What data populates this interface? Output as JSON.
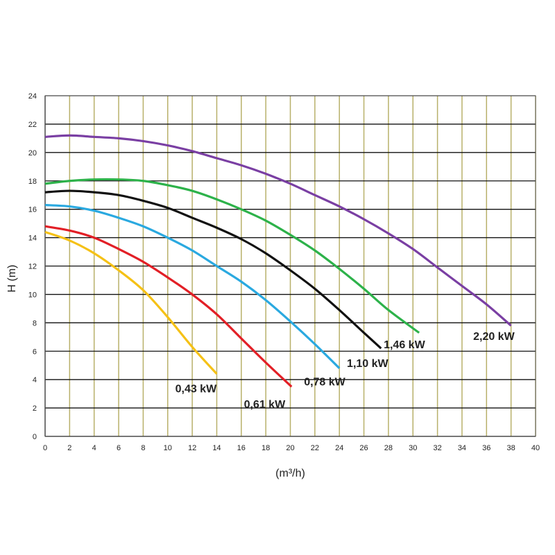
{
  "chart_data": {
    "type": "line",
    "xlabel": "(m³/h)",
    "ylabel": "H (m)",
    "xlim": [
      0,
      40
    ],
    "ylim": [
      0,
      24
    ],
    "x_ticks": [
      0,
      2,
      4,
      6,
      8,
      10,
      12,
      14,
      16,
      18,
      20,
      22,
      24,
      26,
      28,
      30,
      32,
      34,
      36,
      38,
      40
    ],
    "y_ticks": [
      0,
      2,
      4,
      6,
      8,
      10,
      12,
      14,
      16,
      18,
      20,
      22,
      24
    ],
    "grid": {
      "vertical": true,
      "horizontal": true
    },
    "colors": {
      "vertical_grid": "#b8b06a",
      "horizontal_grid": "#111111",
      "plot_border": "#555555"
    },
    "series": [
      {
        "name": "0,43 kW",
        "color": "#f5c116",
        "x": [
          0,
          2,
          4,
          6,
          8,
          10,
          12,
          14
        ],
        "y": [
          14.4,
          13.8,
          12.9,
          11.7,
          10.3,
          8.4,
          6.3,
          4.4
        ]
      },
      {
        "name": "0,61 kW",
        "color": "#e21f26",
        "x": [
          0,
          2,
          4,
          6,
          8,
          10,
          12,
          14,
          16,
          18,
          20.1
        ],
        "y": [
          14.8,
          14.5,
          14.0,
          13.2,
          12.3,
          11.2,
          10.0,
          8.6,
          6.9,
          5.2,
          3.5
        ]
      },
      {
        "name": "0,78 kW",
        "color": "#2aa9e0",
        "x": [
          0,
          2,
          4,
          6,
          8,
          10,
          12,
          14,
          16,
          18,
          20,
          22,
          24
        ],
        "y": [
          16.3,
          16.2,
          15.9,
          15.4,
          14.8,
          14.0,
          13.1,
          12.0,
          10.9,
          9.6,
          8.1,
          6.5,
          4.8
        ]
      },
      {
        "name": "1,10 kW",
        "color": "#111111",
        "x": [
          0,
          2,
          4,
          6,
          8,
          10,
          12,
          14,
          16,
          18,
          20,
          22,
          24,
          26,
          27.4
        ],
        "y": [
          17.2,
          17.3,
          17.2,
          17.0,
          16.6,
          16.1,
          15.4,
          14.7,
          13.9,
          12.9,
          11.7,
          10.4,
          8.9,
          7.3,
          6.2
        ]
      },
      {
        "name": "1,46 kW",
        "color": "#2db24a",
        "x": [
          0,
          2,
          4,
          6,
          8,
          10,
          12,
          14,
          16,
          18,
          20,
          22,
          24,
          26,
          28,
          30.5
        ],
        "y": [
          17.8,
          18.0,
          18.1,
          18.1,
          18.0,
          17.7,
          17.3,
          16.7,
          16.0,
          15.2,
          14.2,
          13.1,
          11.8,
          10.4,
          8.9,
          7.3
        ]
      },
      {
        "name": "2,20 kW",
        "color": "#7a3fa3",
        "x": [
          0,
          2,
          4,
          6,
          8,
          10,
          12,
          14,
          16,
          18,
          20,
          22,
          24,
          26,
          28,
          30,
          32,
          34,
          36,
          38
        ],
        "y": [
          21.1,
          21.2,
          21.1,
          21.0,
          20.8,
          20.5,
          20.1,
          19.6,
          19.1,
          18.5,
          17.8,
          17.0,
          16.2,
          15.3,
          14.3,
          13.2,
          11.9,
          10.6,
          9.3,
          7.8
        ]
      }
    ],
    "labels": [
      {
        "text": "0,43 kW",
        "x": 12.3,
        "y": 3.1
      },
      {
        "text": "0,61 kW",
        "x": 17.9,
        "y": 2.0
      },
      {
        "text": "0,78 kW",
        "x": 22.8,
        "y": 3.6
      },
      {
        "text": "1,10 kW",
        "x": 26.3,
        "y": 4.9
      },
      {
        "text": "1,46 kW",
        "x": 29.3,
        "y": 6.2
      },
      {
        "text": "2,20 kW",
        "x": 36.6,
        "y": 6.8
      }
    ]
  }
}
